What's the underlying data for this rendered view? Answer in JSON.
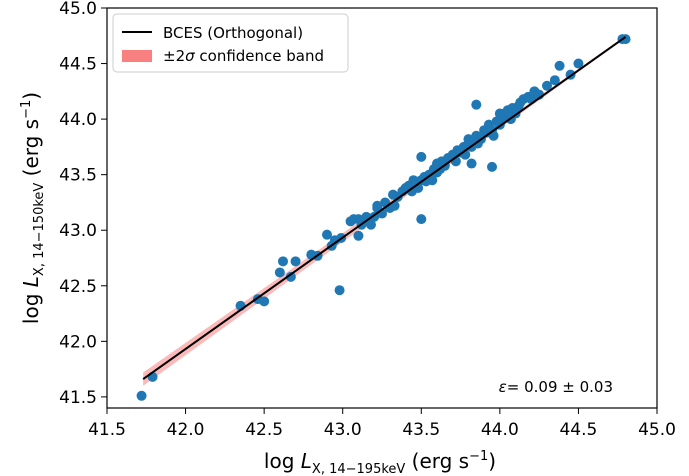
{
  "chart_data": {
    "type": "scatter",
    "xlabel_prefix": "log ",
    "xlabel_var": "L",
    "xlabel_sub": "X, 14−195keV",
    "xlabel_unit": " (erg s",
    "xlabel_unit_sup": "−1",
    "xlabel_unit_close": ")",
    "ylabel_prefix": "log ",
    "ylabel_var": "L",
    "ylabel_sub": "X, 14−150keV",
    "ylabel_unit": " (erg s",
    "ylabel_unit_sup": "−1",
    "ylabel_unit_close": ")",
    "xlim": [
      41.5,
      45.0
    ],
    "ylim": [
      41.4,
      45.0
    ],
    "xticks": [
      "41.5",
      "42.0",
      "42.5",
      "43.0",
      "43.5",
      "44.0",
      "44.5",
      "45.0"
    ],
    "yticks": [
      "41.5",
      "42.0",
      "42.5",
      "43.0",
      "43.5",
      "44.0",
      "44.5",
      "45.0"
    ],
    "legend": {
      "position": "top-left",
      "line_label": "BCES (Orthogonal)",
      "band_label_pre": "±2",
      "band_label_sym": "σ",
      "band_label_post": " confidence band"
    },
    "annotation": {
      "position": "bottom-right",
      "symbol": "ε",
      "text": "= 0.09 ± 0.03"
    },
    "fit_line": {
      "x": [
        41.73,
        44.8
      ],
      "y": [
        41.66,
        44.74
      ]
    },
    "band": {
      "x": [
        41.73,
        44.8
      ],
      "upper": [
        41.72,
        44.75
      ],
      "lower": [
        41.6,
        44.73
      ]
    },
    "series": [
      {
        "x": [
          41.72,
          41.79,
          42.35,
          42.46,
          42.5,
          42.6,
          42.62,
          42.67,
          42.7,
          42.8,
          42.84,
          42.9,
          42.93,
          42.95,
          42.99,
          43.05,
          43.07,
          43.1,
          43.1,
          43.12,
          43.15,
          43.16,
          43.18,
          43.2,
          43.22,
          43.22,
          43.25,
          43.27,
          43.3,
          43.32,
          43.33,
          43.35,
          43.38,
          43.4,
          43.42,
          43.44,
          43.45,
          43.47,
          43.48,
          43.5,
          43.5,
          43.52,
          43.53,
          43.55,
          43.57,
          43.58,
          43.6,
          43.6,
          43.62,
          43.63,
          43.65,
          43.67,
          43.7,
          43.72,
          43.73,
          43.75,
          43.77,
          43.78,
          43.8,
          43.8,
          43.82,
          43.83,
          43.85,
          43.86,
          43.88,
          43.9,
          43.92,
          43.93,
          43.95,
          43.96,
          43.98,
          44.0,
          44.0,
          44.02,
          44.03,
          44.05,
          44.07,
          44.08,
          44.1,
          44.12,
          44.13,
          44.15,
          44.18,
          44.2,
          44.22,
          44.25,
          44.3,
          44.35,
          44.38,
          44.45,
          44.5,
          44.78,
          44.8,
          42.98,
          43.5,
          43.82,
          43.85,
          43.95
        ],
        "y": [
          41.51,
          41.68,
          42.32,
          42.38,
          42.36,
          42.62,
          42.72,
          42.58,
          42.72,
          42.78,
          42.77,
          42.96,
          42.86,
          42.91,
          42.93,
          43.08,
          43.1,
          43.1,
          42.95,
          43.05,
          43.12,
          43.08,
          43.05,
          43.12,
          43.2,
          43.22,
          43.15,
          43.25,
          43.2,
          43.32,
          43.22,
          43.3,
          43.35,
          43.38,
          43.4,
          43.35,
          43.45,
          43.42,
          43.38,
          43.45,
          43.1,
          43.48,
          43.44,
          43.5,
          43.45,
          43.55,
          43.52,
          43.6,
          43.55,
          43.62,
          43.58,
          43.65,
          43.68,
          43.62,
          43.72,
          43.7,
          43.75,
          43.68,
          43.78,
          43.82,
          43.75,
          43.8,
          43.85,
          43.78,
          43.82,
          43.9,
          43.88,
          43.95,
          43.9,
          43.85,
          43.98,
          44.05,
          43.95,
          44.02,
          44.05,
          44.08,
          44.0,
          44.1,
          44.05,
          44.12,
          44.15,
          44.18,
          44.2,
          44.18,
          44.25,
          44.22,
          44.3,
          44.35,
          44.48,
          44.4,
          44.5,
          44.72,
          44.72,
          42.46,
          43.66,
          43.6,
          44.13,
          43.57
        ]
      }
    ]
  }
}
